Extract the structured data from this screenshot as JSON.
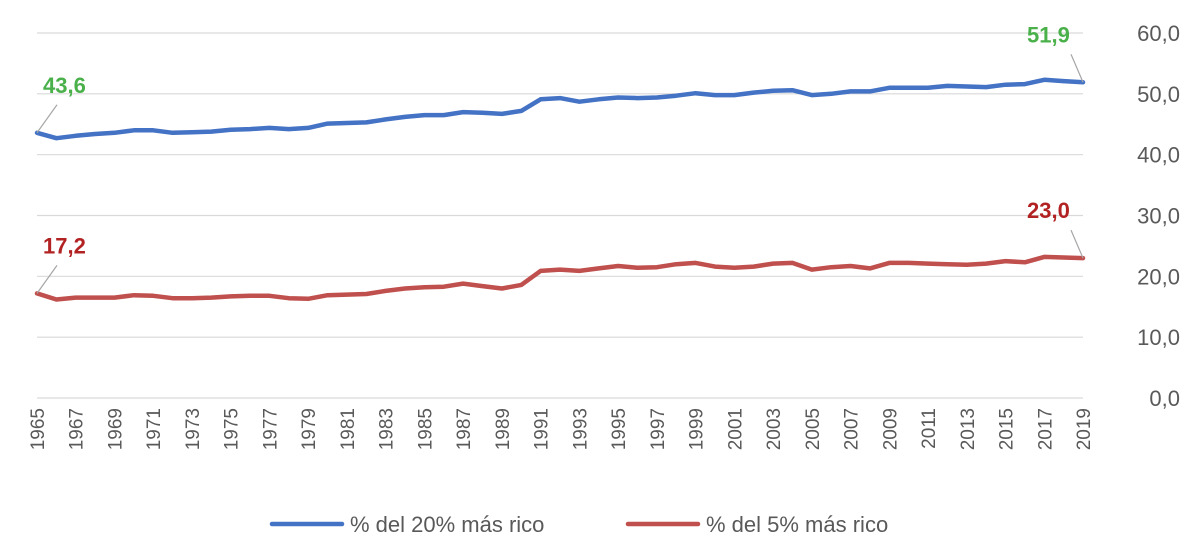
{
  "chart_data": {
    "type": "line",
    "title": "",
    "xlabel": "",
    "ylabel": "",
    "ylim": [
      0,
      60
    ],
    "yticks": [
      "0,0",
      "10,0",
      "20,0",
      "30,0",
      "40,0",
      "50,0",
      "60,0"
    ],
    "y_axis_side": "right",
    "grid": true,
    "legend_position": "bottom",
    "x": [
      1965,
      1966,
      1967,
      1968,
      1969,
      1970,
      1971,
      1972,
      1973,
      1974,
      1975,
      1976,
      1977,
      1978,
      1979,
      1980,
      1981,
      1982,
      1983,
      1984,
      1985,
      1986,
      1987,
      1988,
      1989,
      1990,
      1991,
      1992,
      1993,
      1994,
      1995,
      1996,
      1997,
      1998,
      1999,
      2000,
      2001,
      2002,
      2003,
      2004,
      2005,
      2006,
      2007,
      2008,
      2009,
      2010,
      2011,
      2012,
      2013,
      2014,
      2015,
      2016,
      2017,
      2018,
      2019
    ],
    "xtick_labels": [
      "1965",
      "1967",
      "1969",
      "1971",
      "1973",
      "1975",
      "1977",
      "1979",
      "1981",
      "1983",
      "1985",
      "1987",
      "1989",
      "1991",
      "1993",
      "1995",
      "1997",
      "1999",
      "2001",
      "2003",
      "2005",
      "2007",
      "2009",
      "2011",
      "2013",
      "2015",
      "2017",
      "2019"
    ],
    "series": [
      {
        "name": "% del 20% más rico",
        "color": "#4472c4",
        "values": [
          43.6,
          42.7,
          43.1,
          43.4,
          43.6,
          44.0,
          44.0,
          43.6,
          43.7,
          43.8,
          44.1,
          44.2,
          44.4,
          44.2,
          44.4,
          45.1,
          45.2,
          45.3,
          45.8,
          46.2,
          46.5,
          46.5,
          47.0,
          46.9,
          46.7,
          47.2,
          49.1,
          49.3,
          48.7,
          49.1,
          49.4,
          49.3,
          49.4,
          49.7,
          50.1,
          49.8,
          49.8,
          50.2,
          50.5,
          50.6,
          49.8,
          50.0,
          50.4,
          50.4,
          51.0,
          51.0,
          51.0,
          51.3,
          51.2,
          51.1,
          51.5,
          51.6,
          52.3,
          52.1,
          51.9
        ],
        "start_label": "43,6",
        "end_label": "51,9",
        "label_color": "#4ab04a"
      },
      {
        "name": "% del 5% más rico",
        "color": "#c0504d",
        "values": [
          17.2,
          16.2,
          16.5,
          16.5,
          16.5,
          16.9,
          16.8,
          16.4,
          16.4,
          16.5,
          16.7,
          16.8,
          16.8,
          16.4,
          16.3,
          16.9,
          17.0,
          17.1,
          17.6,
          18.0,
          18.2,
          18.3,
          18.8,
          18.4,
          18.0,
          18.6,
          20.9,
          21.1,
          20.9,
          21.3,
          21.7,
          21.4,
          21.5,
          22.0,
          22.2,
          21.6,
          21.4,
          21.6,
          22.1,
          22.2,
          21.1,
          21.5,
          21.7,
          21.3,
          22.2,
          22.2,
          22.1,
          22.0,
          21.9,
          22.1,
          22.5,
          22.3,
          23.2,
          23.1,
          23.0
        ],
        "start_label": "17,2",
        "end_label": "23,0",
        "label_color": "#b22222"
      }
    ]
  }
}
